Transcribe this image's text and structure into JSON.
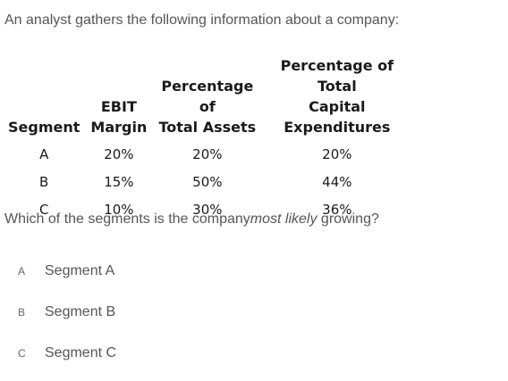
{
  "intro": "An analyst gathers the following information about a company:",
  "table": {
    "headers": {
      "segment": [
        "Segment"
      ],
      "ebit": [
        "EBIT",
        "Margin"
      ],
      "assets": [
        "Percentage of",
        "Total Assets"
      ],
      "capex": [
        "Percentage of Total",
        "Capital",
        "Expenditures"
      ]
    },
    "rows": [
      {
        "segment": "A",
        "ebit": "20%",
        "assets": "20%",
        "capex": "20%"
      },
      {
        "segment": "B",
        "ebit": "15%",
        "assets": "50%",
        "capex": "44%"
      },
      {
        "segment": "C",
        "ebit": "10%",
        "assets": "30%",
        "capex": "36%"
      }
    ]
  },
  "question": {
    "before": "Which of the segments is the company",
    "emphasis": "most likely",
    "after": " growing?"
  },
  "options": [
    {
      "letter": "A",
      "text": "Segment A"
    },
    {
      "letter": "B",
      "text": "Segment B"
    },
    {
      "letter": "C",
      "text": "Segment C"
    }
  ]
}
